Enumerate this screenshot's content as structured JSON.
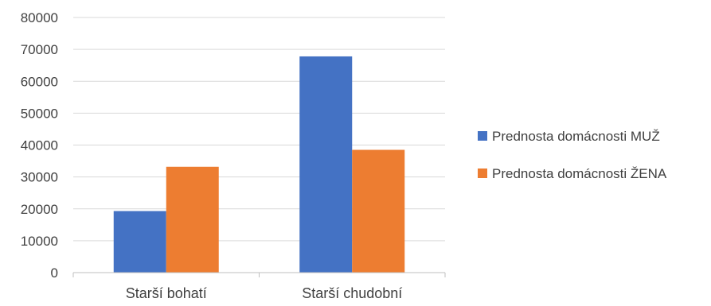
{
  "chart_data": {
    "type": "bar",
    "categories": [
      "Starší bohatí",
      "Starší chudobní"
    ],
    "series": [
      {
        "name": "Prednosta domácnosti MUŽ",
        "values": [
          19300,
          67800
        ],
        "color": "#4472C4"
      },
      {
        "name": "Prednosta domácnosti ŽENA",
        "values": [
          33200,
          38500
        ],
        "color": "#ED7D31"
      }
    ],
    "ylim": [
      0,
      80000
    ],
    "yticks": [
      "0",
      "10000",
      "20000",
      "30000",
      "40000",
      "50000",
      "60000",
      "70000",
      "80000"
    ],
    "grid": true,
    "legend": "right",
    "title": "",
    "xlabel": "",
    "ylabel": ""
  }
}
